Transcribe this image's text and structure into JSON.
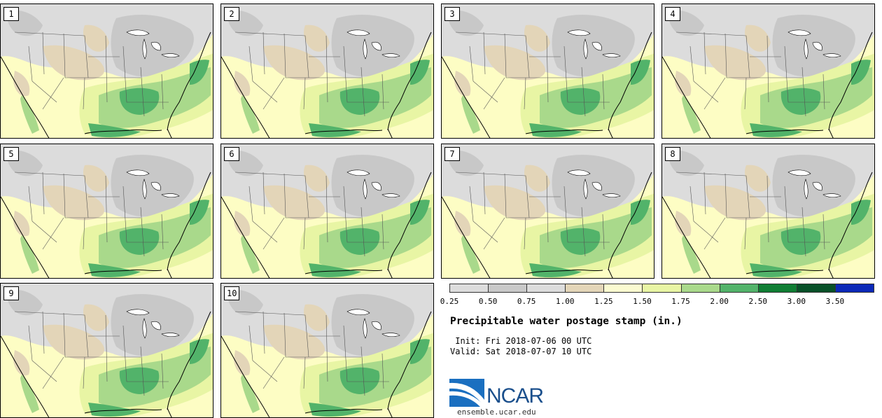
{
  "panels": [
    {
      "label": "1"
    },
    {
      "label": "2"
    },
    {
      "label": "3"
    },
    {
      "label": "4"
    },
    {
      "label": "5"
    },
    {
      "label": "6"
    },
    {
      "label": "7"
    },
    {
      "label": "8"
    },
    {
      "label": "9"
    },
    {
      "label": "10"
    }
  ],
  "colorbar": {
    "colors": [
      "#dcdcdc",
      "#c8c8c8",
      "#dcdcdc",
      "#e3d5b8",
      "#fafad0",
      "#e8f5a4",
      "#a9d98b",
      "#52b36a",
      "#0f7d33",
      "#075028",
      "#0b28b8"
    ],
    "tick_labels": [
      "0.25",
      "0.50",
      "0.75",
      "1.00",
      "1.25",
      "1.50",
      "1.75",
      "2.00",
      "2.50",
      "3.00",
      "3.50"
    ]
  },
  "title": "Precipitable water postage stamp (in.)",
  "init_line": " Init: Fri 2018-07-06 00 UTC",
  "valid_line": "Valid: Sat 2018-07-07 10 UTC",
  "logo": {
    "text": "NCAR",
    "url": "ensemble.ucar.edu"
  }
}
